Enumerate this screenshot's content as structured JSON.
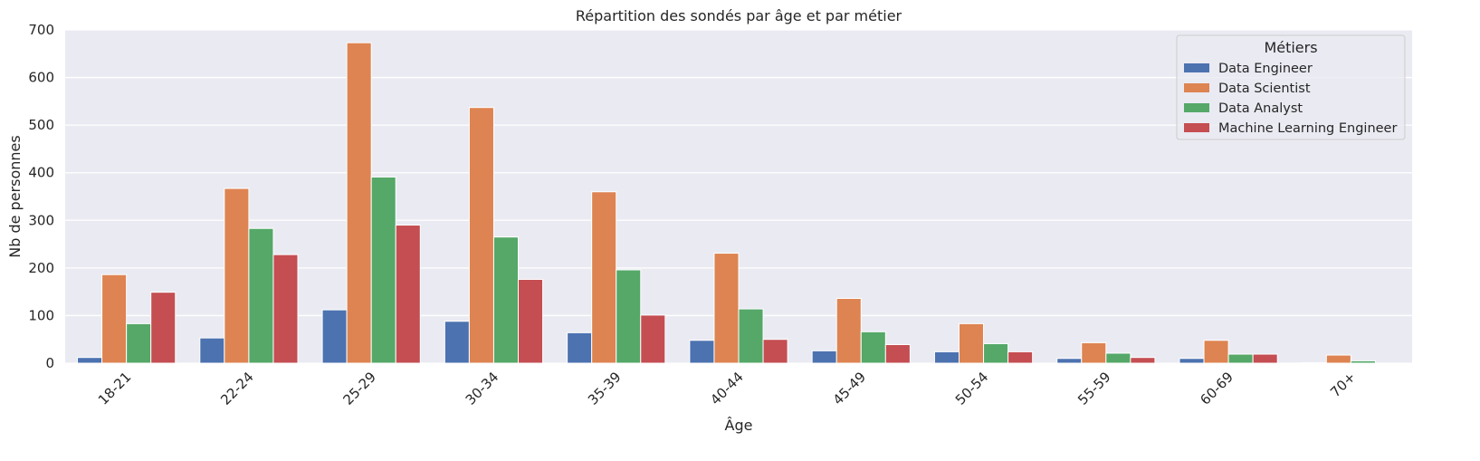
{
  "chart_data": {
    "type": "bar",
    "title": "Répartition des sondés par âge et par métier",
    "xlabel": "Âge",
    "ylabel": "Nb de personnes",
    "categories": [
      "18-21",
      "22-24",
      "25-29",
      "30-34",
      "35-39",
      "40-44",
      "45-49",
      "50-54",
      "55-59",
      "60-69",
      "70+"
    ],
    "series": [
      {
        "name": "Data Engineer",
        "color": "#4c72b0",
        "values": [
          12,
          53,
          112,
          88,
          64,
          48,
          26,
          24,
          10,
          10,
          1
        ]
      },
      {
        "name": "Data Scientist",
        "color": "#dd8452",
        "values": [
          186,
          367,
          673,
          537,
          360,
          231,
          136,
          83,
          43,
          48,
          17
        ]
      },
      {
        "name": "Data Analyst",
        "color": "#55a868",
        "values": [
          83,
          283,
          391,
          265,
          196,
          114,
          66,
          41,
          21,
          19,
          5
        ]
      },
      {
        "name": "Machine Learning Engineer",
        "color": "#c44e52",
        "values": [
          149,
          228,
          290,
          176,
          101,
          50,
          39,
          24,
          12,
          19,
          0
        ]
      }
    ],
    "ylim": [
      0,
      700
    ],
    "yticks": [
      0,
      100,
      200,
      300,
      400,
      500,
      600,
      700
    ],
    "grid": true,
    "legend": {
      "title": "Métiers",
      "position": "top-right"
    },
    "background": "#eaeaf2"
  }
}
